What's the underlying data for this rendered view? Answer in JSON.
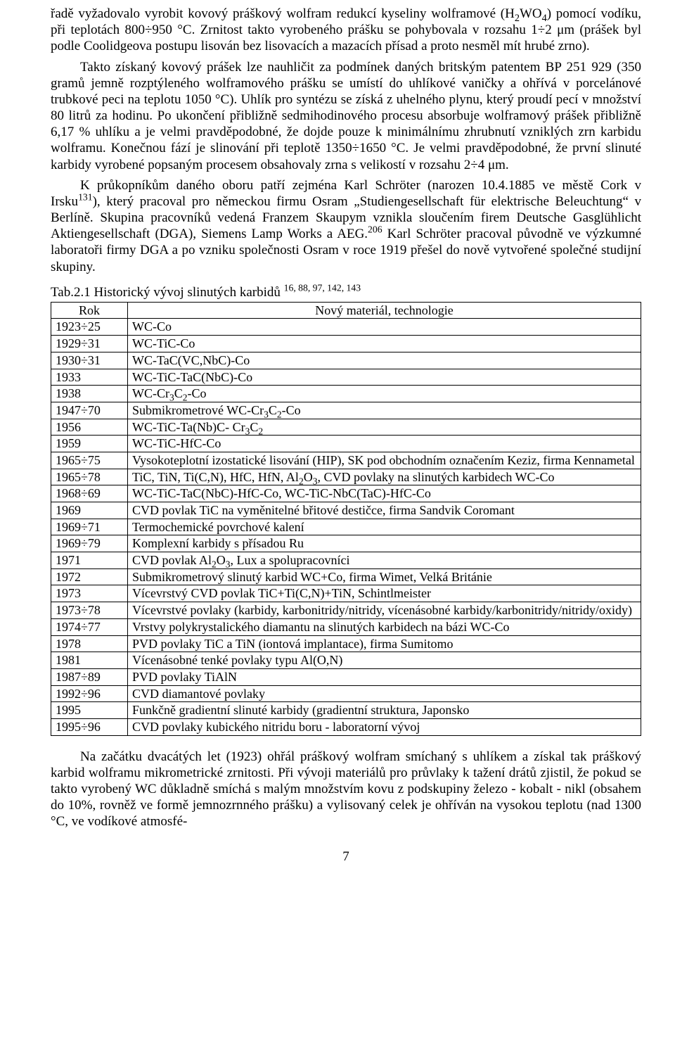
{
  "paragraphs": {
    "p1_a": "řadě vyžadovalo vyrobit kovový práškový wolfram redukcí kyseliny wolframové (H",
    "p1_sub1": "2",
    "p1_b": "WO",
    "p1_sub2": "4",
    "p1_c": ") pomocí vodíku, při teplotách 800÷950 °C. Zrnitost takto vyrobeného prášku se pohybovala v rozsahu 1÷2 μm (prášek byl podle Coolidgeova postupu lisován bez lisovacích a mazacích přísad a proto nesměl mít hrubé zrno).",
    "p2": "Takto získaný kovový prášek lze nauhličit za podmínek daných britským patentem BP 251 929 (350 gramů jemně rozptýleného wolframového prášku se umístí do uhlíkové vaničky a ohřívá v porcelánové trubkové peci na teplotu 1050 °C). Uhlík pro syntézu se získá z uhelného plynu, který proudí pecí v množství 80 litrů za hodinu. Po ukončení přibližně sedmihodinového procesu absorbuje wolframový prášek přibližně 6,17 % uhlíku a je velmi pravděpodobné, že dojde pouze k minimálnímu zhrubnutí vzniklých zrn karbidu wolframu. Konečnou fází je slinování při teplotě 1350÷1650 °C. Je velmi pravděpodobné, že první slinuté karbidy vyrobené popsaným procesem obsahovaly zrna s velikostí v rozsahu 2÷4 μm.",
    "p3_a": "K průkopníkům daného oboru patří zejména Karl Schröter (narozen 10.4.1885 ve městě Cork v Irsku",
    "p3_sup1": "131",
    "p3_b": "), který pracoval pro německou firmu Osram „Studiengesellschaft für elektrische Beleuchtung“ v Berlíně. Skupina pracovníků vedená Franzem Skaupym vznikla sloučením firem Deutsche Gasglühlicht Aktiengesellschaft (DGA), Siemens Lamp Works a AEG.",
    "p3_sup2": "206",
    "p3_c": " Karl Schröter pracoval původně ve výzkumné laboratoři firmy DGA a po vzniku společnosti Osram v roce 1919 přešel do nově vytvořené společné studijní skupiny.",
    "caption_a": "Tab.2.1 Historický vývoj slinutých karbidů ",
    "caption_sup": "16, 88, 97, 142, 143",
    "p4": "Na začátku dvacátých let (1923) ohřál práškový wolfram smíchaný s uhlíkem a získal tak práškový karbid wolframu mikrometrické zrnitosti. Při vývoji materiálů pro průvlaky k tažení drátů zjistil, že pokud se takto vyrobený WC důkladně smíchá s malým množstvím kovu z podskupiny železo - kobalt - nikl (obsahem do 10%, rovněž ve formě jemnozrnného prášku) a vylisovaný celek je ohříván na vysokou teplotu (nad 1300 °C, ve vodíkové atmosfé-"
  },
  "table": {
    "headers": {
      "col1": "Rok",
      "col2": "Nový materiál, technologie"
    },
    "rows": [
      {
        "year": "1923÷25",
        "html": "WC-Co"
      },
      {
        "year": "1929÷31",
        "html": "WC-TiC-Co"
      },
      {
        "year": "1930÷31",
        "html": "WC-TaC(VC,NbC)-Co"
      },
      {
        "year": "1933",
        "html": "WC-TiC-TaC(NbC)-Co"
      },
      {
        "year": "1938",
        "html": "WC-Cr<sub>3</sub>C<sub>2</sub>-Co"
      },
      {
        "year": "1947÷70",
        "html": "Submikrometrové WC-Cr<sub>3</sub>C<sub>2</sub>-Co"
      },
      {
        "year": "1956",
        "html": "WC-TiC-Ta(Nb)C- Cr<sub>3</sub>C<sub>2</sub>"
      },
      {
        "year": "1959",
        "html": "WC-TiC-HfC-Co"
      },
      {
        "year": "1965÷75",
        "html": "Vysokoteplotní izostatické lisování (HIP), SK pod obchodním označením Keziz, firma Kennametal"
      },
      {
        "year": "1965÷78",
        "html": "TiC, TiN, Ti(C,N), HfC, HfN, Al<sub>2</sub>O<sub>3</sub>, CVD povlaky na slinutých karbidech WC-Co"
      },
      {
        "year": "1968÷69",
        "html": "WC-TiC-TaC(NbC)-HfC-Co, WC-TiC-NbC(TaC)-HfC-Co"
      },
      {
        "year": "1969",
        "html": "CVD povlak TiC na vyměnitelné břitové destičce, firma Sandvik Coromant"
      },
      {
        "year": "1969÷71",
        "html": "Termochemické povrchové kalení"
      },
      {
        "year": "1969÷79",
        "html": "Komplexní karbidy s přísadou Ru"
      },
      {
        "year": "1971",
        "html": "CVD povlak Al<sub>2</sub>O<sub>3</sub>, Lux a spolupracovníci"
      },
      {
        "year": "1972",
        "html": "Submikrometrový slinutý karbid WC+Co, firma Wimet, Velká Británie"
      },
      {
        "year": "1973",
        "html": "Vícevrstvý CVD povlak TiC+Ti(C,N)+TiN, Schintlmeister"
      },
      {
        "year": "1973÷78",
        "html": "Vícevrstvé povlaky (karbidy, karbonitridy/nitridy, vícenásobné karbidy/karbonitridy/nitridy/oxidy)"
      },
      {
        "year": "1974÷77",
        "html": "Vrstvy polykrystalického diamantu na slinutých karbidech na bázi WC-Co"
      },
      {
        "year": "1978",
        "html": "PVD povlaky TiC a TiN (iontová implantace), firma Sumitomo"
      },
      {
        "year": "1981",
        "html": "Vícenásobné tenké povlaky typu Al(O,N)"
      },
      {
        "year": "1987÷89",
        "html": "PVD povlaky TiAlN"
      },
      {
        "year": "1992÷96",
        "html": "CVD diamantové povlaky"
      },
      {
        "year": "1995",
        "html": "Funkčně gradientní slinuté karbidy (gradientní struktura, Japonsko"
      },
      {
        "year": "1995÷96",
        "html": "CVD povlaky kubického nitridu boru - laboratorní vývoj"
      }
    ]
  },
  "pagenum": "7"
}
